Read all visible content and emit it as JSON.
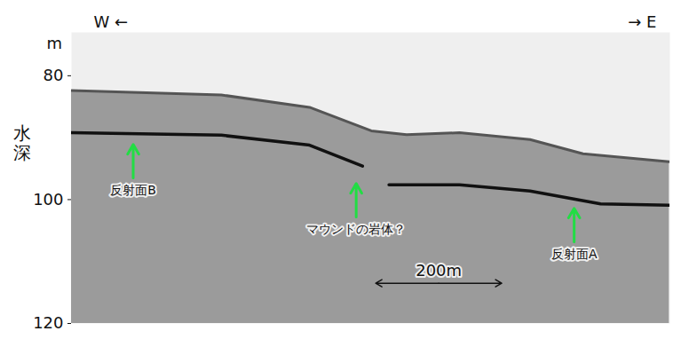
{
  "chart_data": {
    "type": "profile",
    "west_label": "W ←",
    "east_label": "→ E",
    "y_label": "水深",
    "y_unit": "m",
    "ylim": [
      73,
      120
    ],
    "yticks": [
      80,
      100,
      120
    ],
    "xlim": [
      0,
      950
    ],
    "tick_labels": "y",
    "series": [
      {
        "type": "area",
        "color": "#555555",
        "x": [
          0,
          238,
          378,
          476,
          532,
          616,
          728,
          812,
          949
        ],
        "values": [
          82.4,
          83.1,
          85.1,
          88.9,
          89.5,
          89.2,
          90.3,
          92.6,
          93.9
        ]
      },
      {
        "type": "line",
        "color": "#111111",
        "x": [
          0,
          238,
          378,
          462
        ],
        "values": [
          89.2,
          89.6,
          91.2,
          94.6
        ]
      },
      {
        "type": "line",
        "color": "#111111",
        "x": [
          504,
          616,
          728,
          840,
          949
        ],
        "values": [
          97.6,
          97.6,
          98.6,
          100.7,
          100.9
        ]
      }
    ],
    "annotations": [
      {
        "text": "反射面B",
        "x": 98,
        "y": 90.3
      },
      {
        "text": "マウンドの岩体？",
        "x": 452,
        "y": 96.6
      },
      {
        "text": "反射面A",
        "x": 798,
        "y": 100.6
      }
    ],
    "annotation_color": "#22dd44",
    "scale_bar": {
      "start": 483,
      "length": 200,
      "depth": 113.5,
      "label": "200m"
    }
  }
}
